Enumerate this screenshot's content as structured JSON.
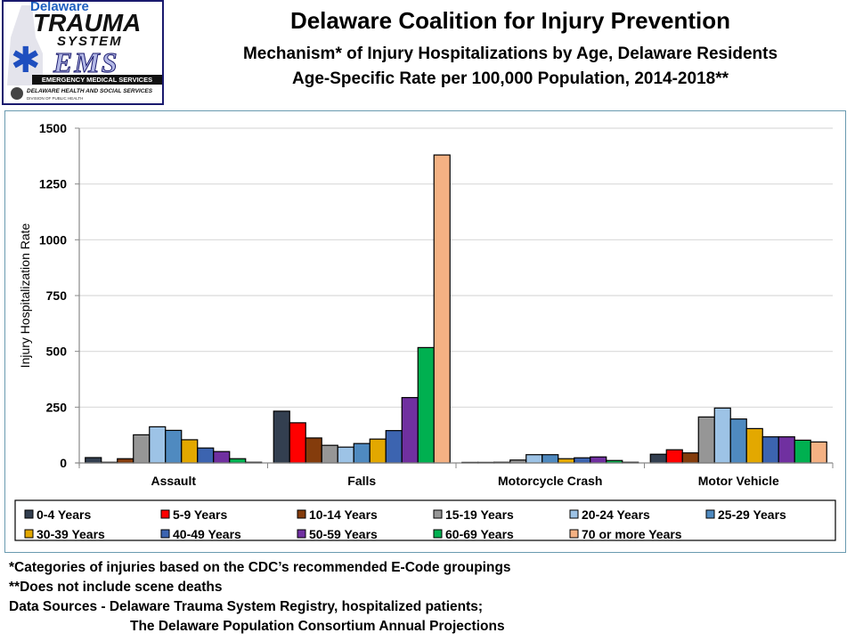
{
  "logo": {
    "line1": "Delaware",
    "line2": "TRAUMA",
    "line3": "SYSTEM",
    "line4": "EMS",
    "banner": "EMERGENCY MEDICAL SERVICES",
    "agency": "DELAWARE HEALTH AND SOCIAL SERVICES",
    "division": "DIVISION OF PUBLIC HEALTH",
    "icons": [
      "star-of-life-icon",
      "delaware-state-map-icon",
      "dhss-seal-icon"
    ]
  },
  "header": {
    "title": "Delaware Coalition for Injury Prevention",
    "subtitle1": "Mechanism* of Injury Hospitalizations by Age, Delaware Residents",
    "subtitle2": "Age-Specific Rate per 100,000 Population, 2014-2018**"
  },
  "chart_data": {
    "type": "bar",
    "title": "Mechanism* of Injury Hospitalizations by Age, Delaware Residents",
    "xlabel": "",
    "ylabel": "Injury Hospitalization Rate",
    "ylim": [
      0,
      1500
    ],
    "yticks": [
      0,
      250,
      500,
      750,
      1000,
      1250,
      1500
    ],
    "grid": true,
    "legend_position": "bottom",
    "categories": [
      "Assault",
      "Falls",
      "Motorcycle Crash",
      "Motor Vehicle"
    ],
    "series": [
      {
        "name": "0-4 Years",
        "color": "#333f50",
        "values": [
          24,
          232,
          0,
          39
        ]
      },
      {
        "name": "5-9 Years",
        "color": "#ff0000",
        "values": [
          3,
          180,
          0,
          59
        ]
      },
      {
        "name": "10-14 Years",
        "color": "#843c0c",
        "values": [
          19,
          112,
          3,
          45
        ]
      },
      {
        "name": "15-19 Years",
        "color": "#969696",
        "values": [
          126,
          79,
          13,
          206
        ]
      },
      {
        "name": "20-24 Years",
        "color": "#9dc3e6",
        "values": [
          162,
          71,
          37,
          246
        ]
      },
      {
        "name": "25-29 Years",
        "color": "#4f8ac0",
        "values": [
          146,
          87,
          37,
          197
        ]
      },
      {
        "name": "30-39 Years",
        "color": "#e3a800",
        "values": [
          104,
          107,
          19,
          154
        ]
      },
      {
        "name": "40-49 Years",
        "color": "#3c64b0",
        "values": [
          67,
          145,
          23,
          117
        ]
      },
      {
        "name": "50-59 Years",
        "color": "#7030a0",
        "values": [
          51,
          293,
          27,
          117
        ]
      },
      {
        "name": "60-69 Years",
        "color": "#00b050",
        "values": [
          19,
          517,
          11,
          102
        ]
      },
      {
        "name": "70 or more Years",
        "color": "#f4b183",
        "values": [
          3,
          1380,
          3,
          94
        ]
      }
    ]
  },
  "notes": {
    "line1": "*Categories of injuries based on the CDC’s recommended E-Code groupings",
    "line2": "**Does not include scene deaths",
    "line3": "Data Sources - Delaware Trauma System Registry, hospitalized patients;",
    "line4": "The Delaware Population Consortium Annual Projections"
  }
}
